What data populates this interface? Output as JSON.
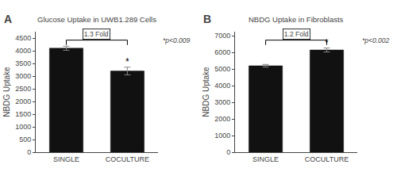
{
  "chart_data": [
    {
      "type": "bar",
      "panel": "A",
      "title": "Glucose Uptake in UWB1.289 Cells",
      "categories": [
        "SINGLE",
        "COCULTURE"
      ],
      "values": [
        4100,
        3200
      ],
      "errors": [
        80,
        150
      ],
      "ylabel": "NBDG Uptake",
      "color": "#111111",
      "ylim": [
        0,
        4750
      ],
      "yticks": [
        0,
        500,
        1000,
        1500,
        2000,
        2500,
        3000,
        3500,
        4000,
        4500
      ],
      "grid": false,
      "annotations": [
        {
          "text": "1.3 Fold",
          "between": [
            "SINGLE",
            "COCULTURE"
          ]
        },
        {
          "text": "*p<0.009"
        },
        {
          "text": "*",
          "category": "COCULTURE"
        }
      ]
    },
    {
      "type": "bar",
      "panel": "B",
      "title": "NBDG Uptake in Fibroblasts",
      "categories": [
        "SINGLE",
        "COCULTURE"
      ],
      "values": [
        5200,
        6150
      ],
      "errors": [
        80,
        120
      ],
      "ylabel": "NBDG Uptake",
      "color": "#111111",
      "ylim": [
        0,
        7250
      ],
      "yticks": [
        0,
        1000,
        2000,
        3000,
        4000,
        5000,
        6000,
        7000
      ],
      "grid": false,
      "annotations": [
        {
          "text": "1.2 Fold",
          "between": [
            "SINGLE",
            "COCULTURE"
          ]
        },
        {
          "text": "*p<0.002"
        },
        {
          "text": "*",
          "category": "COCULTURE"
        }
      ]
    }
  ]
}
